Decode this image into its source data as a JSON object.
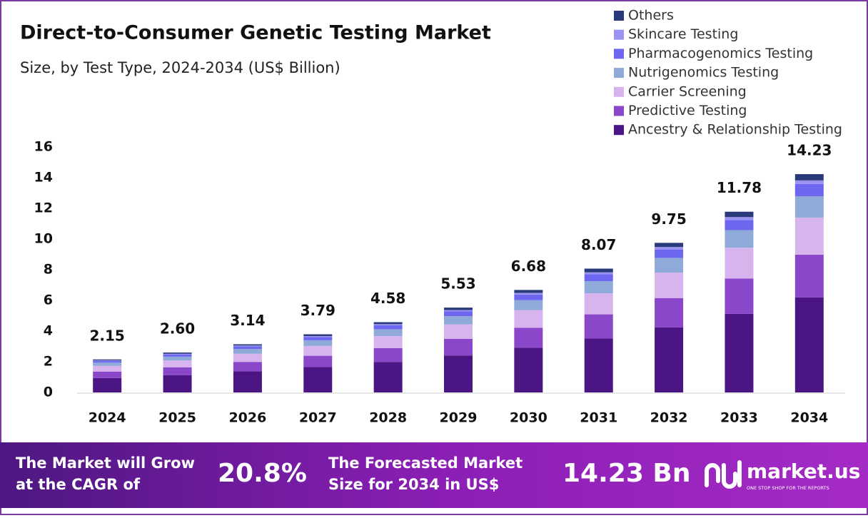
{
  "chart_data": {
    "type": "stacked_bar",
    "title": "Direct-to-Consumer Genetic Testing Market",
    "subtitle": "Size, by Test Type, 2024-2034 (US$ Billion)",
    "categories": [
      "2024",
      "2025",
      "2026",
      "2027",
      "2028",
      "2029",
      "2030",
      "2031",
      "2032",
      "2033",
      "2034"
    ],
    "series": [
      {
        "name": "Ancestry & Relationship Testing",
        "color": "#4b1583",
        "values": [
          0.94,
          1.13,
          1.37,
          1.65,
          1.99,
          2.41,
          2.91,
          3.51,
          4.24,
          5.12,
          6.19
        ]
      },
      {
        "name": "Predictive Testing",
        "color": "#8a47c9",
        "values": [
          0.42,
          0.51,
          0.62,
          0.74,
          0.9,
          1.08,
          1.31,
          1.58,
          1.91,
          2.31,
          2.79
        ]
      },
      {
        "name": "Carrier Screening",
        "color": "#d8b4ef",
        "values": [
          0.37,
          0.44,
          0.53,
          0.64,
          0.78,
          0.94,
          1.14,
          1.37,
          1.66,
          2.0,
          2.42
        ]
      },
      {
        "name": "Nutrigenomics Testing",
        "color": "#8fa9d9",
        "values": [
          0.21,
          0.25,
          0.31,
          0.37,
          0.45,
          0.54,
          0.65,
          0.79,
          0.96,
          1.15,
          1.39
        ]
      },
      {
        "name": "Pharmacogenomics Testing",
        "color": "#6d67f0",
        "values": [
          0.12,
          0.15,
          0.18,
          0.21,
          0.26,
          0.31,
          0.37,
          0.45,
          0.55,
          0.66,
          0.8
        ]
      },
      {
        "name": "Skincare Testing",
        "color": "#9a93f2",
        "values": [
          0.03,
          0.04,
          0.05,
          0.06,
          0.07,
          0.09,
          0.11,
          0.13,
          0.16,
          0.19,
          0.23
        ]
      },
      {
        "name": "Others",
        "color": "#29397a",
        "values": [
          0.06,
          0.08,
          0.08,
          0.12,
          0.13,
          0.16,
          0.19,
          0.24,
          0.27,
          0.35,
          0.41
        ]
      }
    ],
    "totals": [
      2.15,
      2.6,
      3.14,
      3.79,
      4.58,
      5.53,
      6.68,
      8.07,
      9.75,
      11.78,
      14.23
    ],
    "total_labels": [
      "2.15",
      "2.60",
      "3.14",
      "3.79",
      "4.58",
      "5.53",
      "6.68",
      "8.07",
      "9.75",
      "11.78",
      "14.23"
    ],
    "ylim": [
      0,
      16
    ],
    "yticks": [
      0,
      2,
      4,
      6,
      8,
      10,
      12,
      14,
      16
    ],
    "grid": false,
    "legend": "top-right"
  },
  "footer": {
    "cagr_text": [
      "The Market will Grow",
      "at the CAGR of"
    ],
    "cagr": "20.8%",
    "forecast_text": [
      "The Forecasted Market",
      "Size for 2034 in US$"
    ],
    "forecast": "14.23 Bn",
    "brand": "market.us",
    "tagline": "ONE STOP SHOP FOR THE REPORTS"
  }
}
